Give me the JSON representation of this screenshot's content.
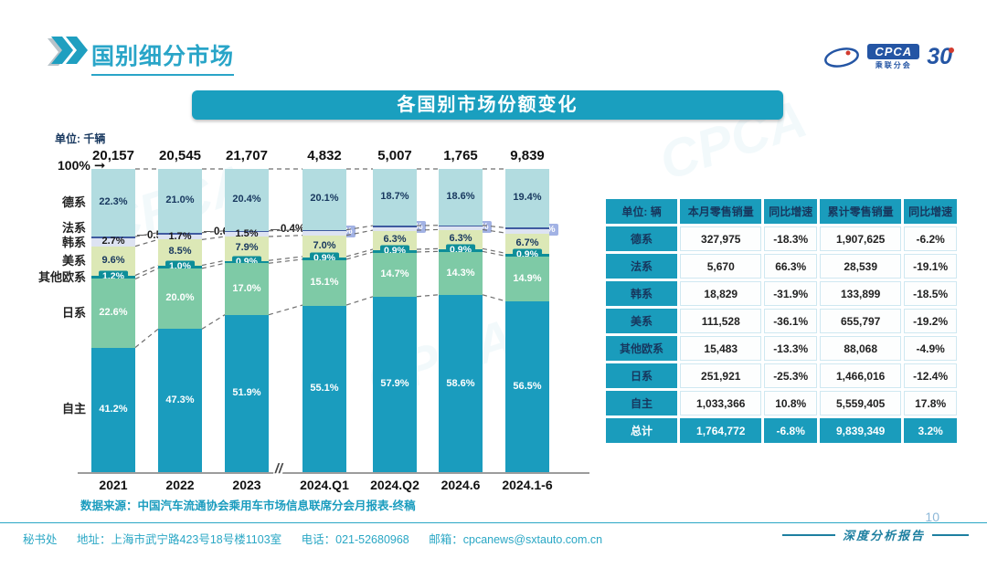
{
  "page": {
    "title": "国别细分市场",
    "page_number": "10",
    "report_type_label": "深度分析报告",
    "data_source": "数据来源：中国汽车流通协会乘用车市场信息联席分会月报表-终稿",
    "footer": {
      "secretariat": "秘书处",
      "address": "地址：上海市武宁路423号18号楼1103室",
      "phone": "电话：021-52680968",
      "email": "邮箱：cpcanews@sxtauto.com.cn"
    },
    "logos": {
      "cpca": "CPCA",
      "cpca_sub": "乘联分会",
      "anniversary": "30"
    },
    "watermark": "CPCA"
  },
  "chart_data": {
    "type": "bar",
    "stacked": true,
    "title": "各国别市场份额变化",
    "unit_label": "单位: 千辆",
    "axis_100_label": "100%",
    "break_mark": "//",
    "categories": [
      "2021",
      "2022",
      "2023",
      "2024.Q1",
      "2024.Q2",
      "2024.6",
      "2024.1-6"
    ],
    "totals": [
      "20,157",
      "20,545",
      "21,707",
      "4,832",
      "5,007",
      "1,765",
      "9,839"
    ],
    "ylim": [
      0,
      100
    ],
    "axis_break_after_index": 2,
    "series": [
      {
        "name": "德系",
        "color": "#b2dce0",
        "label_color": "#17375e",
        "style": "inside",
        "values": [
          22.3,
          21.0,
          20.4,
          20.1,
          18.7,
          18.6,
          19.4
        ],
        "labels": [
          "22.3%",
          "21.0%",
          "20.4%",
          "20.1%",
          "18.7%",
          "18.6%",
          "19.4%"
        ]
      },
      {
        "name": "法系",
        "color": "#3f5aa0",
        "label_color": "#1a1a1a",
        "style": "callout-then-box",
        "values": [
          0.5,
          0.6,
          0.4,
          0.3,
          0.3,
          0.3,
          0.3
        ],
        "labels": [
          "0.5%",
          "0.6%",
          "0.4%",
          "0.3%",
          "0.3%",
          "0.3%",
          "0.3%"
        ]
      },
      {
        "name": "韩系",
        "color": "#dde3f2",
        "label_color": "#1a1a1a",
        "style": "band-then-combo",
        "values": [
          2.7,
          1.7,
          1.5,
          1.5,
          1.2,
          1.1,
          1.4
        ],
        "labels": [
          "2.7%",
          "1.7%",
          "1.5%",
          "1.5%",
          "1.2%",
          "1.1%",
          "1.4%"
        ]
      },
      {
        "name": "美系",
        "color": "#dce8b6",
        "label_color": "#17375e",
        "style": "inside",
        "values": [
          9.6,
          8.5,
          7.9,
          7.0,
          6.3,
          6.3,
          6.7
        ],
        "labels": [
          "9.6%",
          "8.5%",
          "7.9%",
          "7.0%",
          "6.3%",
          "6.3%",
          "6.7%"
        ]
      },
      {
        "name": "其他欧系",
        "color": "#0e8e99",
        "label_color": "#ffffff",
        "style": "pill",
        "values": [
          1.2,
          1.0,
          0.9,
          0.9,
          0.9,
          0.9,
          0.9
        ],
        "labels": [
          "1.2%",
          "1.0%",
          "0.9%",
          "0.9%",
          "0.9%",
          "0.9%",
          "0.9%"
        ]
      },
      {
        "name": "日系",
        "color": "#7ecaa6",
        "label_color": "#ffffff",
        "style": "inside",
        "values": [
          22.6,
          20.0,
          17.0,
          15.1,
          14.7,
          14.3,
          14.9
        ],
        "labels": [
          "22.6%",
          "20.0%",
          "17.0%",
          "15.1%",
          "14.7%",
          "14.3%",
          "14.9%"
        ]
      },
      {
        "name": "自主",
        "color": "#1a9cbe",
        "label_color": "#ffffff",
        "style": "inside",
        "values": [
          41.2,
          47.3,
          51.9,
          55.1,
          57.9,
          58.6,
          56.5
        ],
        "labels": [
          "41.2%",
          "47.3%",
          "51.9%",
          "55.1%",
          "57.9%",
          "58.6%",
          "56.5%"
        ]
      }
    ]
  },
  "table": {
    "header": [
      "单位: 辆",
      "本月零售销量",
      "同比增速",
      "累计零售销量",
      "同比增速"
    ],
    "rows": [
      [
        "德系",
        "327,975",
        "-18.3%",
        "1,907,625",
        "-6.2%"
      ],
      [
        "法系",
        "5,670",
        "66.3%",
        "28,539",
        "-19.1%"
      ],
      [
        "韩系",
        "18,829",
        "-31.9%",
        "133,899",
        "-18.5%"
      ],
      [
        "美系",
        "111,528",
        "-36.1%",
        "655,797",
        "-19.2%"
      ],
      [
        "其他欧系",
        "15,483",
        "-13.3%",
        "88,068",
        "-4.9%"
      ],
      [
        "日系",
        "251,921",
        "-25.3%",
        "1,466,016",
        "-12.4%"
      ],
      [
        "自主",
        "1,033,366",
        "10.8%",
        "5,559,405",
        "17.8%"
      ]
    ],
    "total_row": [
      "总计",
      "1,764,772",
      "-6.8%",
      "9,839,349",
      "3.2%"
    ]
  },
  "colors": {
    "accent_teal": "#1a9fbf",
    "title_teal": "#29a5c8",
    "table_header_text": "#17375e",
    "logo_blue": "#2455a4",
    "logo_red": "#d23b2f"
  }
}
